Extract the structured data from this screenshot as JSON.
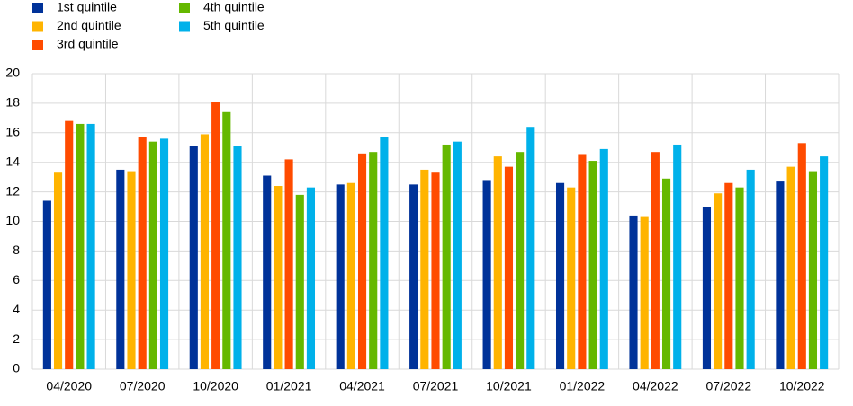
{
  "chart_data": {
    "type": "bar",
    "categories": [
      "04/2020",
      "07/2020",
      "10/2020",
      "01/2021",
      "04/2021",
      "07/2021",
      "10/2021",
      "01/2022",
      "04/2022",
      "07/2022",
      "10/2022"
    ],
    "series": [
      {
        "name": "1st quintile",
        "color": "#003299",
        "values": [
          11.4,
          13.5,
          15.1,
          13.1,
          12.5,
          12.5,
          12.8,
          12.6,
          10.4,
          11.0,
          12.7
        ]
      },
      {
        "name": "2nd quintile",
        "color": "#ffb400",
        "values": [
          13.3,
          13.4,
          15.9,
          12.4,
          12.6,
          13.5,
          14.4,
          12.3,
          10.3,
          11.9,
          13.7
        ]
      },
      {
        "name": "3rd quintile",
        "color": "#ff4b00",
        "values": [
          16.8,
          15.7,
          18.1,
          14.2,
          14.6,
          13.3,
          13.7,
          14.5,
          14.7,
          12.6,
          15.3
        ]
      },
      {
        "name": "4th quintile",
        "color": "#65b800",
        "values": [
          16.6,
          15.4,
          17.4,
          11.8,
          14.7,
          15.2,
          14.7,
          14.1,
          12.9,
          12.3,
          13.4
        ]
      },
      {
        "name": "5th quintile",
        "color": "#00b1ea",
        "values": [
          16.6,
          15.6,
          15.1,
          12.3,
          15.7,
          15.4,
          16.4,
          14.9,
          15.2,
          13.5,
          14.4
        ]
      }
    ],
    "ylim": [
      0,
      20
    ],
    "yticks": [
      0,
      2,
      4,
      6,
      8,
      10,
      12,
      14,
      16,
      18,
      20
    ],
    "grid": true
  }
}
